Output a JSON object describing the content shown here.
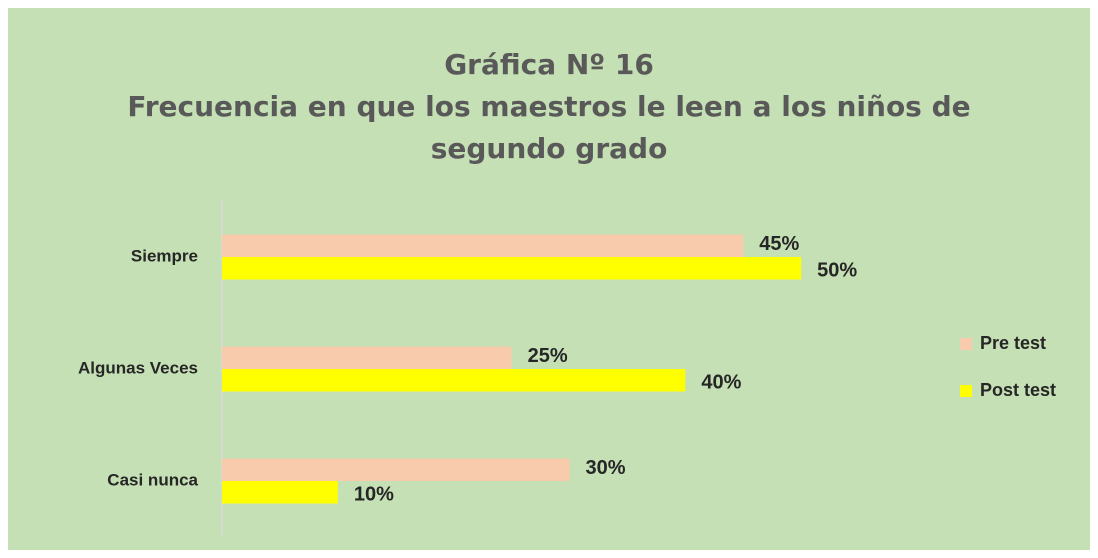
{
  "chart_data": {
    "type": "hbar",
    "title": "Gráfica Nº 16",
    "subtitle": "Frecuencia en que los maestros le leen a los niños de segundo grado",
    "categories": [
      "Siempre",
      "Algunas Veces",
      "Casi nunca"
    ],
    "series": [
      {
        "name": "Pre test",
        "color": "#f8cbad",
        "values": [
          45,
          25,
          30
        ],
        "value_labels": [
          "45%",
          "25%",
          "30%"
        ]
      },
      {
        "name": "Post test",
        "color": "#ffff00",
        "values": [
          50,
          40,
          10
        ],
        "value_labels": [
          "50%",
          "40%",
          "10%"
        ]
      }
    ],
    "xlim": [
      0,
      60
    ],
    "legend": "right"
  }
}
